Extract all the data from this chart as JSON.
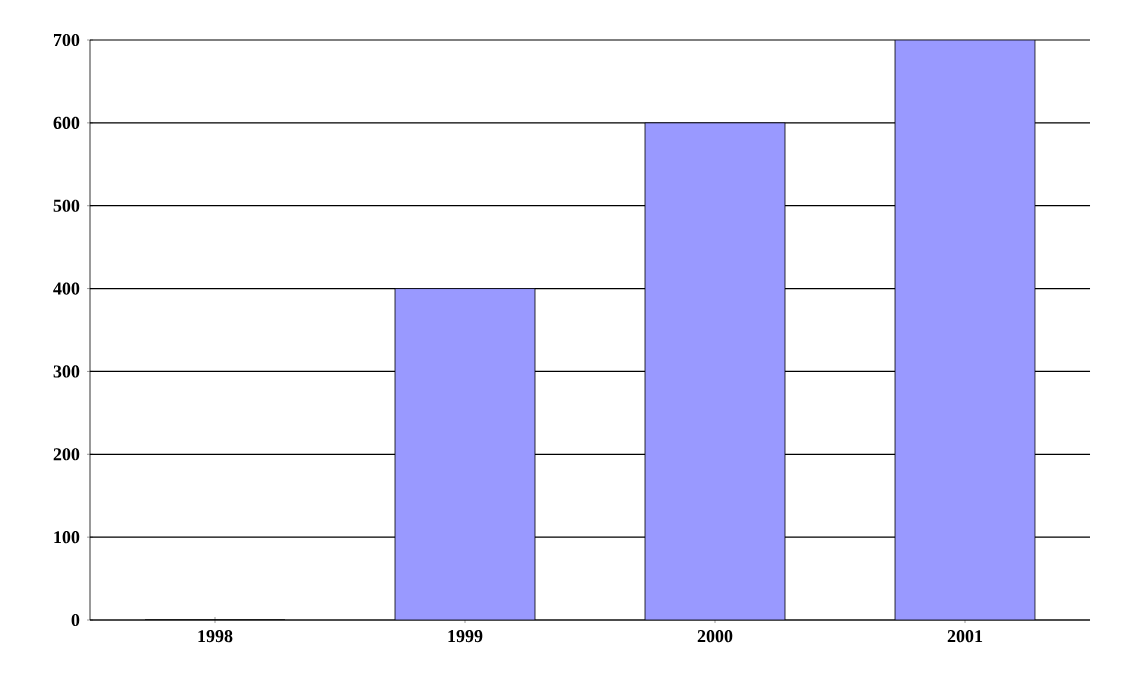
{
  "chart_data": {
    "type": "bar",
    "categories": [
      "1998",
      "1999",
      "2000",
      "2001"
    ],
    "values": [
      0,
      400,
      600,
      700
    ],
    "color": "#9999ff",
    "ylim": [
      0,
      700
    ],
    "yticks": [
      0,
      100,
      200,
      300,
      400,
      500,
      600,
      700
    ],
    "grid": "y"
  }
}
